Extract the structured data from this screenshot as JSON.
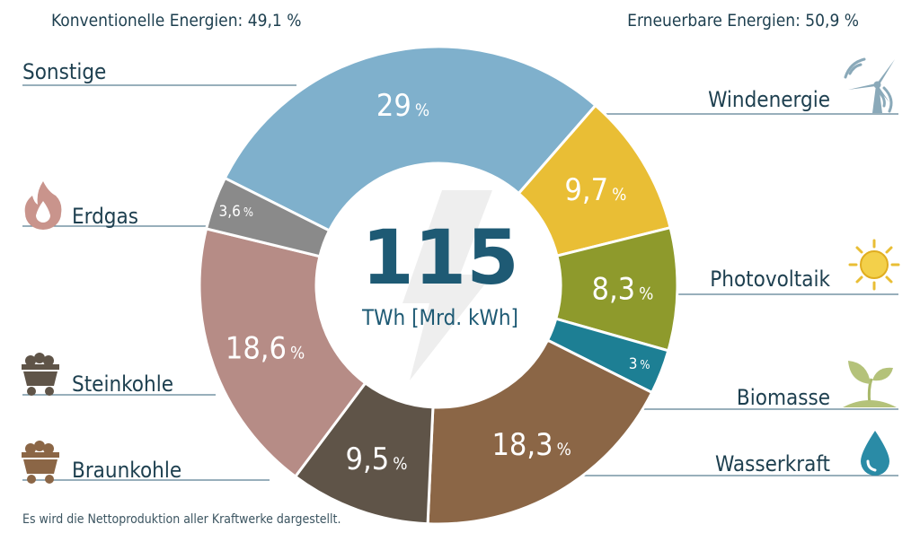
{
  "groups": {
    "conventional": "Konventionelle Energien: 49,1 %",
    "renewable": "Erneuerbare Energien: 50,9 %"
  },
  "center": {
    "value": "115",
    "unit": "TWh [Mrd. kWh]"
  },
  "footnote": "Es wird die Nettoproduktion aller Kraftwerke dargestellt.",
  "icons": {
    "wind": "wind-turbine-icon",
    "pv": "sun-icon",
    "bio": "sprout-icon",
    "water": "water-drop-icon",
    "gas": "flame-icon",
    "hard_coal": "coal-cart-icon",
    "lignite": "coal-cart-icon"
  },
  "chart_data": {
    "type": "pie",
    "donut": true,
    "slices": [
      {
        "label": "Windenergie",
        "value": 29,
        "display": "29",
        "unit": "%",
        "color": "#7fb0cc",
        "group": "renewable"
      },
      {
        "label": "Photovoltaik",
        "value": 9.7,
        "display": "9,7",
        "unit": "%",
        "color": "#e9be35",
        "group": "renewable"
      },
      {
        "label": "Biomasse",
        "value": 8.3,
        "display": "8,3",
        "unit": "%",
        "color": "#8e9a2c",
        "group": "renewable"
      },
      {
        "label": "Wasserkraft",
        "value": 3,
        "display": "3",
        "unit": "%",
        "color": "#1d7f94",
        "group": "renewable"
      },
      {
        "label": "Braunkohle",
        "value": 18.3,
        "display": "18,3",
        "unit": "%",
        "color": "#8b6646",
        "group": "conventional"
      },
      {
        "label": "Steinkohle",
        "value": 9.5,
        "display": "9,5",
        "unit": "%",
        "color": "#5f5448",
        "group": "conventional"
      },
      {
        "label": "Erdgas",
        "value": 18.6,
        "display": "18,6",
        "unit": "%",
        "color": "#b68c86",
        "group": "conventional"
      },
      {
        "label": "Sonstige",
        "value": 3.6,
        "display": "3,6",
        "unit": "%",
        "color": "#8a8a8a",
        "group": "conventional"
      }
    ]
  }
}
